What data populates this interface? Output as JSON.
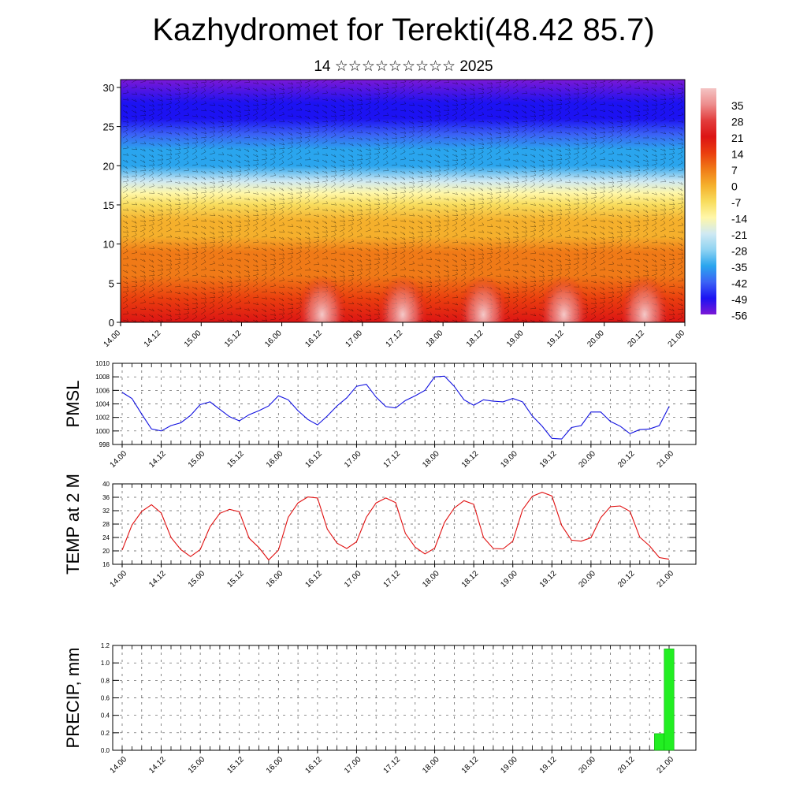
{
  "title": "Kazhydromet for Terekti(48.42 85.7)",
  "subtitle": "14 ☆☆☆☆☆☆☆☆☆ 2025",
  "time_labels": [
    "14.00",
    "14.12",
    "15.00",
    "15.12",
    "16.00",
    "16.12",
    "17.00",
    "17.12",
    "18.00",
    "18.12",
    "19.00",
    "19.12",
    "20.00",
    "20.12",
    "21.00"
  ],
  "chart_data": [
    {
      "type": "heatmap",
      "name": "cross-section",
      "ylim": [
        0,
        31
      ],
      "yticks": [
        0,
        5,
        10,
        15,
        20,
        25,
        30
      ],
      "colorbar": {
        "labels": [
          "35",
          "28",
          "21",
          "14",
          "7",
          "0",
          "-7",
          "-14",
          "-21",
          "-28",
          "-35",
          "-42",
          "-49",
          "-56"
        ],
        "range": [
          -60,
          38
        ],
        "stops": [
          "#7b18d6",
          "#1c12f2",
          "#3b62f5",
          "#2aa5ee",
          "#8fd3f2",
          "#cfe9f3",
          "#fff7a8",
          "#f8dc5c",
          "#f5b02c",
          "#f07a17",
          "#ea3e0e",
          "#dc1414",
          "#e23c3c",
          "#ed8d8d",
          "#f4c4c4"
        ]
      },
      "temperature_profile": {
        "heights_km": [
          0,
          3,
          6,
          9,
          11,
          13,
          15,
          16.5,
          18,
          20,
          22,
          24,
          26,
          28,
          31
        ],
        "temperature_c": [
          20,
          12,
          5,
          0,
          -3,
          -7,
          -12,
          -18,
          -28,
          -36,
          -42,
          -46,
          -50,
          -54,
          -58
        ]
      },
      "surface_warm_maxima": [
        {
          "time": "16.12",
          "temperature_c": 36
        },
        {
          "time": "17.12",
          "temperature_c": 35
        },
        {
          "time": "18.12",
          "temperature_c": 35
        },
        {
          "time": "19.12",
          "temperature_c": 37
        },
        {
          "time": "20.12",
          "temperature_c": 33
        }
      ]
    },
    {
      "type": "line",
      "ylabel": "PMSL",
      "ylim": [
        998,
        1010
      ],
      "yticks": [
        998,
        1000,
        1002,
        1004,
        1006,
        1008,
        1010
      ],
      "series": [
        {
          "color": "#1010e0",
          "values": [
            1005.7,
            1004.8,
            1002.5,
            1000.3,
            1000.0,
            1000.8,
            1001.2,
            1002.3,
            1003.9,
            1004.3,
            1003.2,
            1002.1,
            1001.5,
            1002.4,
            1003.0,
            1003.7,
            1005.2,
            1004.6,
            1003.0,
            1001.7,
            1000.9,
            1002.2,
            1003.7,
            1004.9,
            1006.6,
            1006.9,
            1005.0,
            1003.6,
            1003.4,
            1004.5,
            1005.2,
            1006.0,
            1008.0,
            1008.1,
            1006.6,
            1004.6,
            1003.8,
            1004.6,
            1004.4,
            1004.3,
            1004.8,
            1004.3,
            1002.2,
            1000.7,
            998.9,
            998.8,
            1000.5,
            1000.8,
            1002.8,
            1002.8,
            1001.4,
            1000.7,
            999.6,
            1000.2,
            1000.3,
            1000.8,
            1003.6
          ]
        }
      ]
    },
    {
      "type": "line",
      "ylabel": "TEMP at 2 M",
      "ylim": [
        16,
        40
      ],
      "yticks": [
        16,
        20,
        24,
        28,
        32,
        36,
        40
      ],
      "series": [
        {
          "color": "#e01010",
          "values": [
            20.2,
            27.7,
            31.8,
            33.8,
            31.3,
            24.0,
            20.4,
            18.3,
            20.4,
            27.2,
            31.2,
            32.4,
            31.7,
            23.8,
            21.0,
            17.3,
            20.2,
            30.0,
            34.3,
            36.1,
            35.8,
            26.5,
            22.3,
            20.7,
            22.7,
            30.0,
            34.3,
            35.8,
            34.4,
            25.2,
            21.1,
            19.1,
            20.8,
            28.5,
            32.8,
            35.0,
            33.9,
            24.0,
            20.7,
            20.6,
            22.9,
            32.3,
            36.3,
            37.5,
            36.4,
            27.6,
            23.2,
            22.9,
            23.9,
            29.9,
            33.2,
            33.4,
            31.8,
            24.1,
            21.5,
            18.0,
            17.5
          ]
        }
      ]
    },
    {
      "type": "bar",
      "ylabel": "PRECIP, mm",
      "ylim": [
        0,
        1.2
      ],
      "yticks": [
        "0.0",
        "0.2",
        "0.4",
        "0.6",
        "0.8",
        "1.0",
        "1.2"
      ],
      "color": "#22ee22",
      "series": [
        {
          "values": [
            0,
            0,
            0,
            0,
            0,
            0,
            0,
            0,
            0,
            0,
            0,
            0,
            0,
            0,
            0,
            0,
            0,
            0,
            0,
            0,
            0,
            0,
            0,
            0,
            0,
            0,
            0,
            0,
            0,
            0,
            0,
            0,
            0,
            0,
            0,
            0,
            0,
            0,
            0,
            0,
            0,
            0,
            0,
            0,
            0,
            0,
            0,
            0,
            0,
            0,
            0,
            0,
            0,
            0,
            0,
            0.19,
            1.16
          ]
        }
      ]
    }
  ]
}
